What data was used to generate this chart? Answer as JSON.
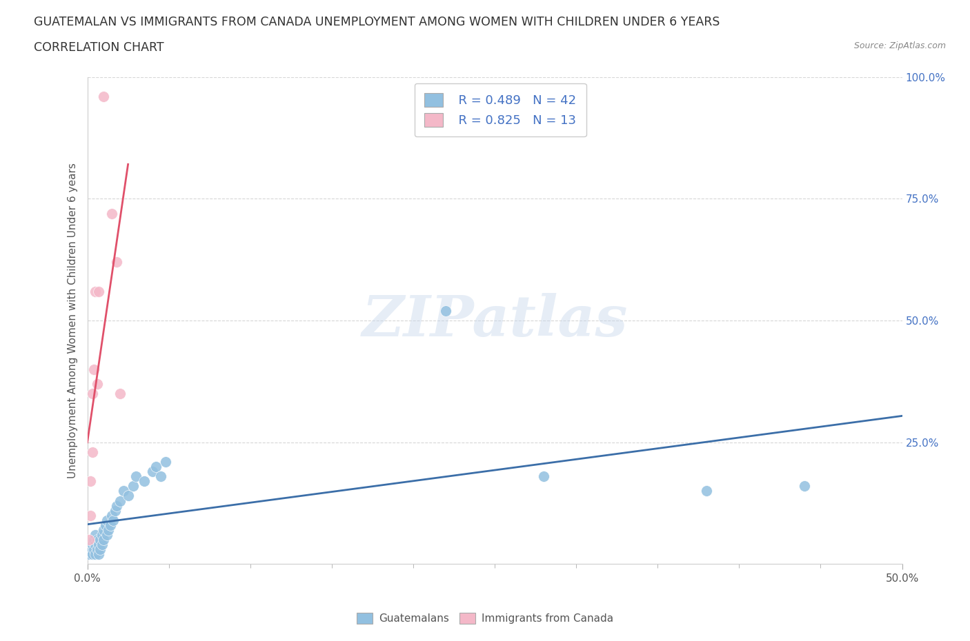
{
  "title_line1": "GUATEMALAN VS IMMIGRANTS FROM CANADA UNEMPLOYMENT AMONG WOMEN WITH CHILDREN UNDER 6 YEARS",
  "title_line2": "CORRELATION CHART",
  "source": "Source: ZipAtlas.com",
  "ylabel": "Unemployment Among Women with Children Under 6 years",
  "xlim": [
    0.0,
    0.5
  ],
  "ylim": [
    0.0,
    1.0
  ],
  "xticks_major": [
    0.0,
    0.5
  ],
  "xtick_major_labels": [
    "0.0%",
    "50.0%"
  ],
  "xticks_minor": [
    0.05,
    0.1,
    0.15,
    0.2,
    0.25,
    0.3,
    0.35,
    0.4,
    0.45
  ],
  "yticks": [
    0.25,
    0.5,
    0.75,
    1.0
  ],
  "ytick_labels": [
    "25.0%",
    "50.0%",
    "75.0%",
    "100.0%"
  ],
  "blue_color": "#92C0E0",
  "pink_color": "#F4B8C8",
  "blue_line_color": "#3B6EA8",
  "pink_line_color": "#E0506A",
  "r_blue": 0.489,
  "n_blue": 42,
  "r_pink": 0.825,
  "n_pink": 13,
  "blue_scatter_x": [
    0.001,
    0.002,
    0.003,
    0.003,
    0.004,
    0.004,
    0.005,
    0.005,
    0.005,
    0.006,
    0.006,
    0.007,
    0.007,
    0.008,
    0.008,
    0.009,
    0.009,
    0.01,
    0.01,
    0.011,
    0.012,
    0.012,
    0.013,
    0.014,
    0.015,
    0.016,
    0.017,
    0.018,
    0.02,
    0.022,
    0.025,
    0.028,
    0.03,
    0.035,
    0.04,
    0.042,
    0.045,
    0.048,
    0.22,
    0.28,
    0.38,
    0.44
  ],
  "blue_scatter_y": [
    0.02,
    0.03,
    0.02,
    0.04,
    0.03,
    0.05,
    0.02,
    0.04,
    0.06,
    0.03,
    0.05,
    0.02,
    0.04,
    0.03,
    0.05,
    0.04,
    0.06,
    0.05,
    0.07,
    0.08,
    0.06,
    0.09,
    0.07,
    0.08,
    0.1,
    0.09,
    0.11,
    0.12,
    0.13,
    0.15,
    0.14,
    0.16,
    0.18,
    0.17,
    0.19,
    0.2,
    0.18,
    0.21,
    0.52,
    0.18,
    0.15,
    0.16
  ],
  "pink_scatter_x": [
    0.001,
    0.002,
    0.002,
    0.003,
    0.003,
    0.004,
    0.005,
    0.006,
    0.007,
    0.01,
    0.015,
    0.018,
    0.02
  ],
  "pink_scatter_y": [
    0.05,
    0.1,
    0.17,
    0.23,
    0.35,
    0.4,
    0.56,
    0.37,
    0.56,
    0.96,
    0.72,
    0.62,
    0.35
  ],
  "watermark": "ZIPatlas",
  "background_color": "#FFFFFF",
  "grid_color": "#CCCCCC",
  "title_fontsize": 12.5,
  "subtitle_fontsize": 12.5,
  "axis_label_fontsize": 11,
  "tick_fontsize": 11,
  "legend_fontsize": 13
}
